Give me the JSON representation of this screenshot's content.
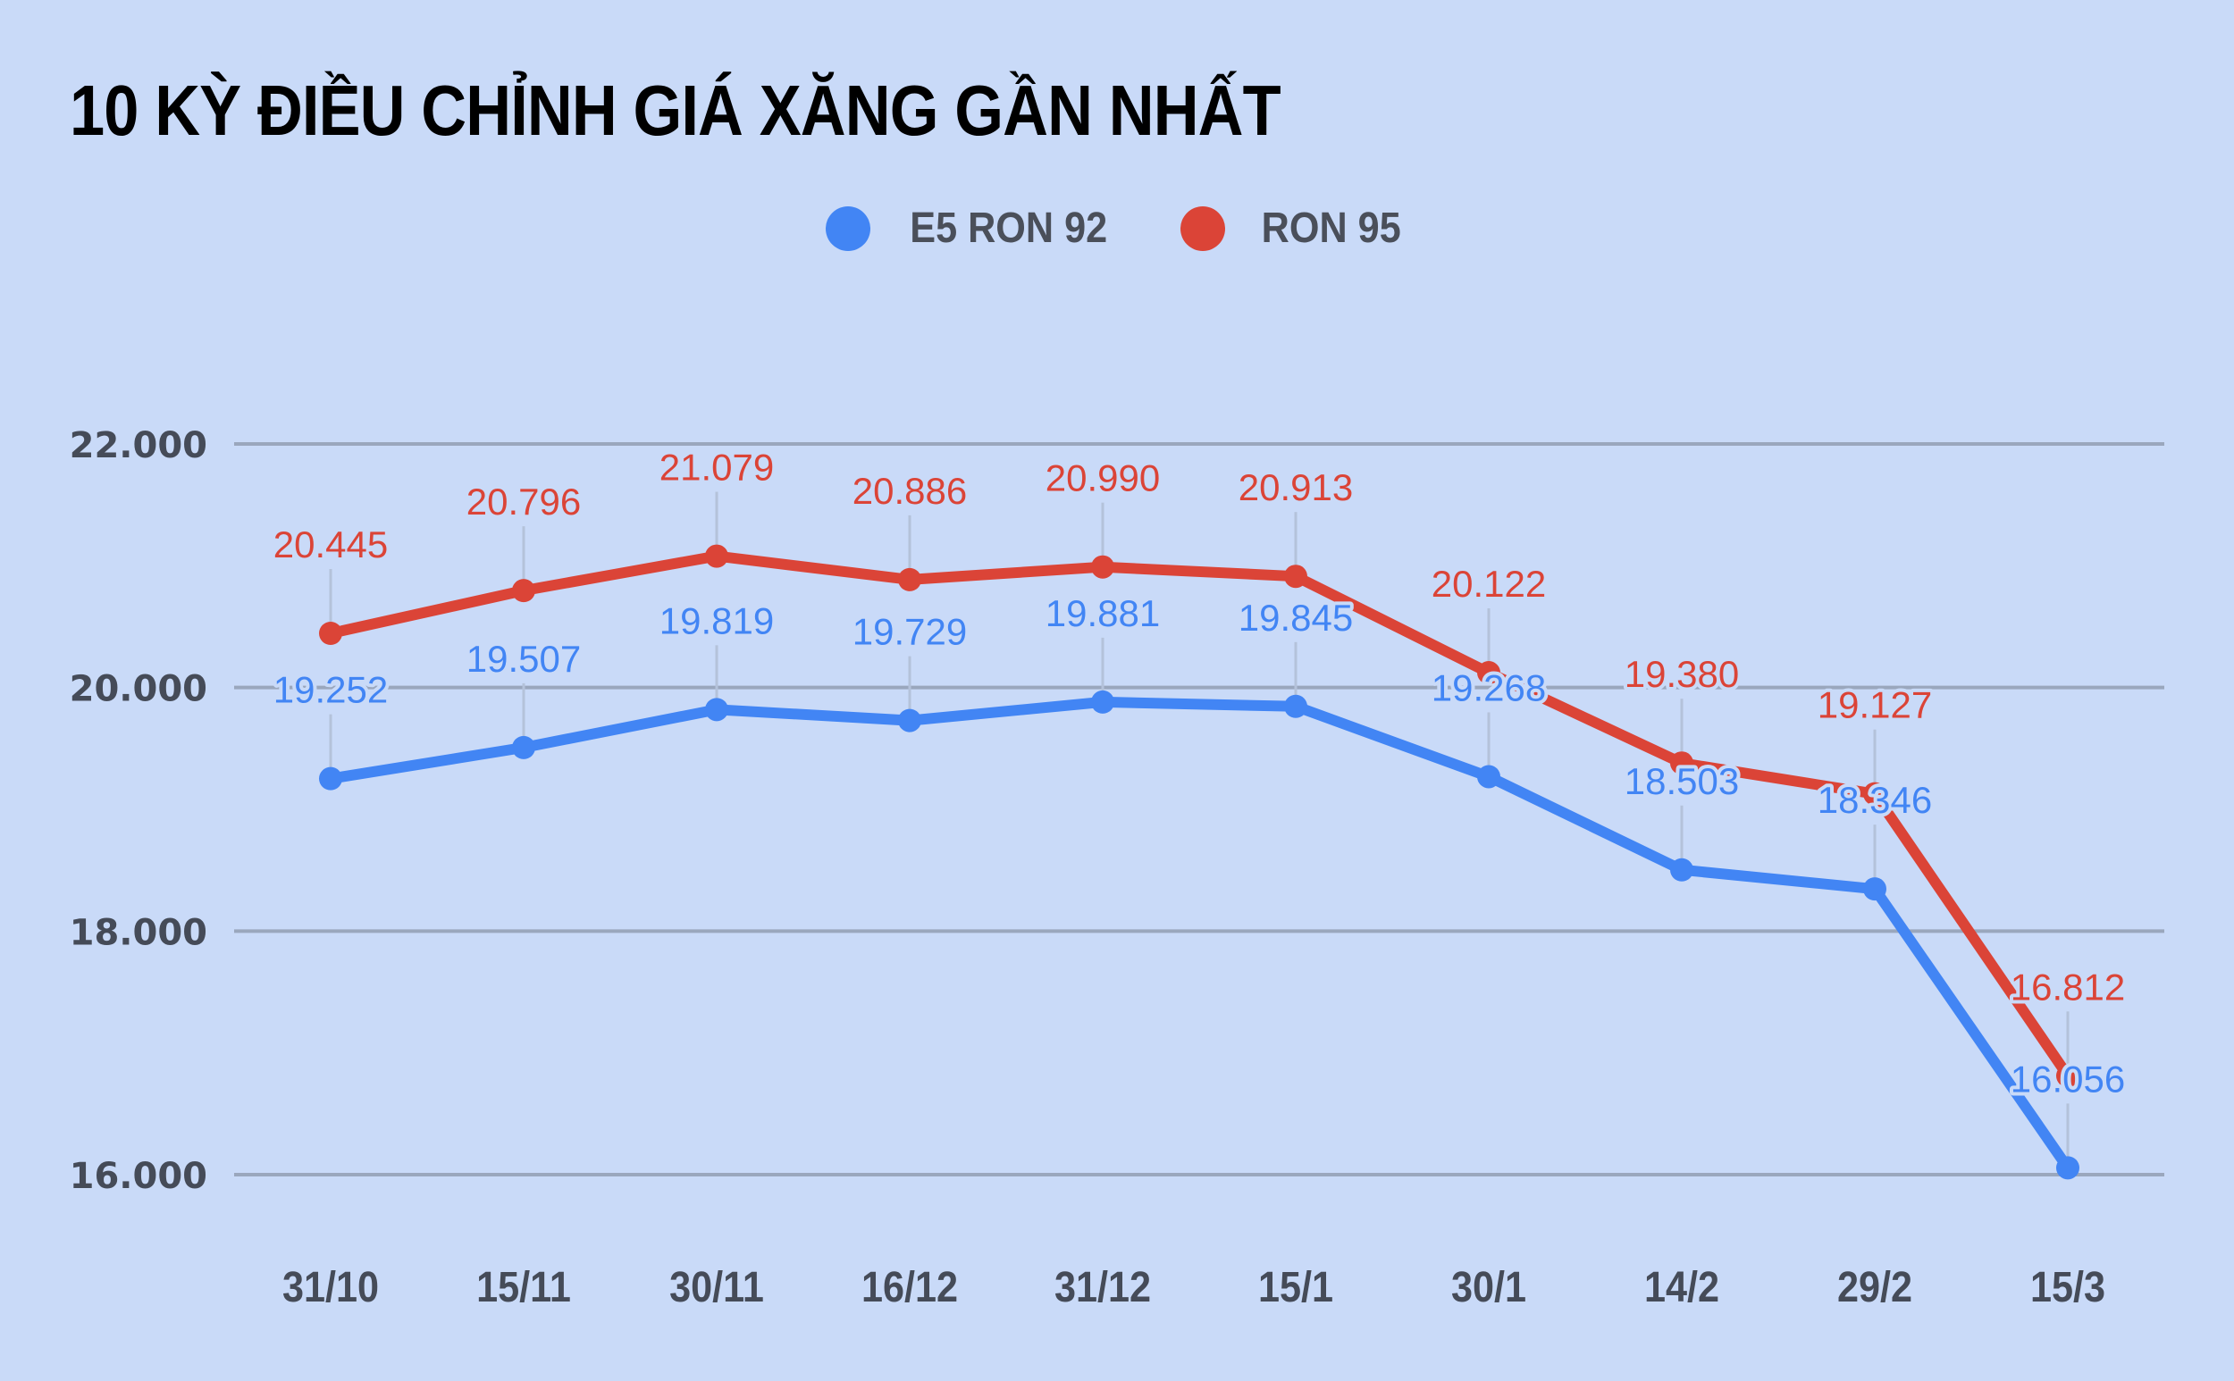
{
  "title": "10 KỲ ĐIỀU CHỈNH GIÁ XĂNG GẦN NHẤT",
  "legend": [
    {
      "name": "E5 RON 92",
      "color": "#4285f4"
    },
    {
      "name": "RON 95",
      "color": "#db4437"
    }
  ],
  "colors": {
    "background": "#c9daf8",
    "grid": "#9aa7bd",
    "axis_text": "#454b58",
    "leader": "#b4c2da"
  },
  "chart_data": {
    "type": "line",
    "title": "10 KỲ ĐIỀU CHỈNH GIÁ XĂNG GẦN NHẤT",
    "xlabel": "",
    "ylabel": "",
    "categories": [
      "31/10",
      "15/11",
      "30/11",
      "16/12",
      "31/12",
      "15/1",
      "30/1",
      "14/2",
      "29/2",
      "15/3"
    ],
    "series": [
      {
        "name": "E5 RON 92",
        "color": "#4285f4",
        "values": [
          19252,
          19507,
          19819,
          19729,
          19881,
          19845,
          19268,
          18503,
          18346,
          16056
        ],
        "labels": [
          "19.252",
          "19.507",
          "19.819",
          "19.729",
          "19.881",
          "19.845",
          "19.268",
          "18.503",
          "18.346",
          "16.056"
        ]
      },
      {
        "name": "RON 95",
        "color": "#db4437",
        "values": [
          20445,
          20796,
          21079,
          20886,
          20990,
          20913,
          20122,
          19380,
          19127,
          16812
        ],
        "labels": [
          "20.445",
          "20.796",
          "21.079",
          "20.886",
          "20.990",
          "20.913",
          "20.122",
          "19.380",
          "19.127",
          "16.812"
        ]
      }
    ],
    "yticks": [
      16000,
      18000,
      20000,
      22000
    ],
    "ytick_labels": [
      "16.000",
      "18.000",
      "20.000",
      "22.000"
    ],
    "ylim": [
      16000,
      22000
    ],
    "grid": true,
    "legend_position": "top"
  }
}
